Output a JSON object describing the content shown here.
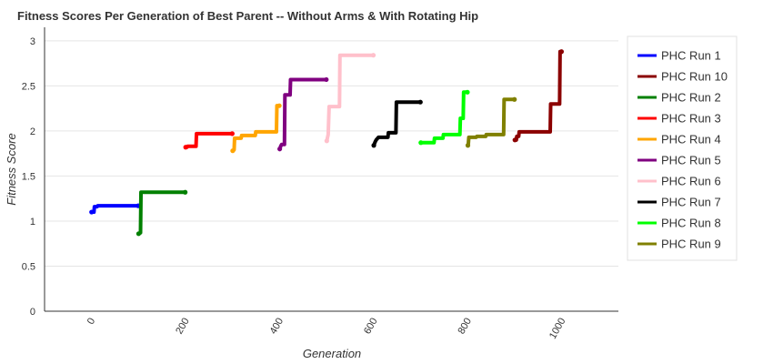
{
  "chart_data": {
    "type": "line",
    "title": "Fitness Scores Per Generation of Best Parent -- Without Arms & With Rotating Hip",
    "xlabel": "Generation",
    "ylabel": "Fitness Score",
    "xlim": [
      -100,
      1120
    ],
    "ylim": [
      0,
      3.15
    ],
    "x_ticks": [
      "0",
      "200",
      "400",
      "600",
      "800",
      "1000"
    ],
    "y_ticks": [
      "0",
      "0.5",
      "1",
      "1.5",
      "2",
      "2.5",
      "3"
    ],
    "grid": true,
    "legend_position": "right",
    "series": [
      {
        "name": "PHC Run 1",
        "color": "#0000ff",
        "points": [
          [
            0,
            1.1
          ],
          [
            5,
            1.1
          ],
          [
            6,
            1.16
          ],
          [
            12,
            1.16
          ],
          [
            13,
            1.17
          ],
          [
            99,
            1.17
          ]
        ]
      },
      {
        "name": "PHC Run 10",
        "color": "#8b0000",
        "points": [
          [
            900,
            1.9
          ],
          [
            903,
            1.9
          ],
          [
            904,
            1.94
          ],
          [
            908,
            1.94
          ],
          [
            909,
            1.99
          ],
          [
            975,
            1.99
          ],
          [
            976,
            2.3
          ],
          [
            995,
            2.3
          ],
          [
            996,
            2.88
          ],
          [
            999,
            2.88
          ]
        ]
      },
      {
        "name": "PHC Run 2",
        "color": "#008000",
        "points": [
          [
            100,
            0.86
          ],
          [
            104,
            0.87
          ],
          [
            105,
            1.32
          ],
          [
            199,
            1.32
          ]
        ]
      },
      {
        "name": "PHC Run 3",
        "color": "#ff0000",
        "points": [
          [
            200,
            1.82
          ],
          [
            203,
            1.82
          ],
          [
            204,
            1.83
          ],
          [
            222,
            1.83
          ],
          [
            223,
            1.97
          ],
          [
            299,
            1.97
          ]
        ]
      },
      {
        "name": "PHC Run 4",
        "color": "#ffa500",
        "points": [
          [
            300,
            1.78
          ],
          [
            303,
            1.79
          ],
          [
            304,
            1.92
          ],
          [
            318,
            1.92
          ],
          [
            319,
            1.95
          ],
          [
            348,
            1.95
          ],
          [
            349,
            1.99
          ],
          [
            393,
            1.99
          ],
          [
            394,
            2.28
          ],
          [
            399,
            2.28
          ]
        ]
      },
      {
        "name": "PHC Run 5",
        "color": "#800080",
        "points": [
          [
            400,
            1.8
          ],
          [
            402,
            1.83
          ],
          [
            404,
            1.85
          ],
          [
            410,
            1.85
          ],
          [
            411,
            2.4
          ],
          [
            422,
            2.4
          ],
          [
            423,
            2.57
          ],
          [
            499,
            2.57
          ]
        ]
      },
      {
        "name": "PHC Run 6",
        "color": "#ffc0cb",
        "points": [
          [
            500,
            1.89
          ],
          [
            503,
            1.96
          ],
          [
            505,
            2.27
          ],
          [
            527,
            2.27
          ],
          [
            528,
            2.84
          ],
          [
            599,
            2.84
          ]
        ]
      },
      {
        "name": "PHC Run 7",
        "color": "#000000",
        "points": [
          [
            600,
            1.84
          ],
          [
            603,
            1.88
          ],
          [
            605,
            1.9
          ],
          [
            610,
            1.93
          ],
          [
            630,
            1.93
          ],
          [
            631,
            1.98
          ],
          [
            647,
            1.98
          ],
          [
            648,
            2.32
          ],
          [
            699,
            2.32
          ]
        ]
      },
      {
        "name": "PHC Run 8",
        "color": "#00ff00",
        "points": [
          [
            700,
            1.87
          ],
          [
            728,
            1.87
          ],
          [
            729,
            1.92
          ],
          [
            747,
            1.92
          ],
          [
            748,
            1.96
          ],
          [
            783,
            1.96
          ],
          [
            784,
            2.14
          ],
          [
            790,
            2.14
          ],
          [
            791,
            2.43
          ],
          [
            799,
            2.43
          ]
        ]
      },
      {
        "name": "PHC Run 9",
        "color": "#808000",
        "points": [
          [
            800,
            1.84
          ],
          [
            801,
            1.86
          ],
          [
            802,
            1.93
          ],
          [
            818,
            1.93
          ],
          [
            819,
            1.94
          ],
          [
            838,
            1.94
          ],
          [
            839,
            1.96
          ],
          [
            876,
            1.96
          ],
          [
            877,
            2.35
          ],
          [
            899,
            2.35
          ]
        ]
      }
    ]
  }
}
